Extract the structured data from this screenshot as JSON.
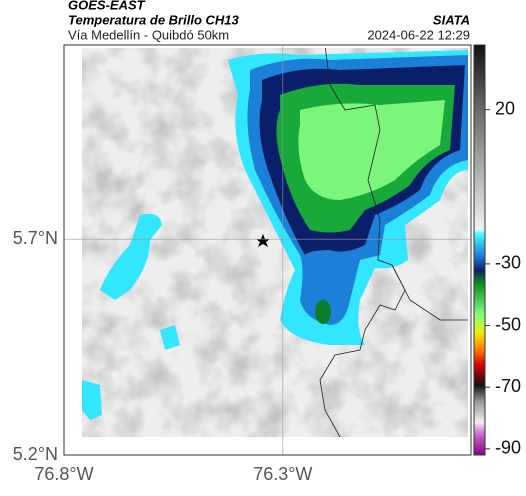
{
  "header": {
    "satellite": "GOES-EAST",
    "product": "Temperatura de Brillo CH13",
    "region": "Vía Medellín - Quibdó 50km",
    "agency": "SIATA",
    "datetime": "2024-06-22 12:29"
  },
  "map": {
    "xlim": [
      -76.8,
      -75.87
    ],
    "ylim": [
      5.2,
      6.15
    ],
    "xticks": [
      {
        "value": -76.8,
        "label": "76.8°W"
      },
      {
        "value": -76.3,
        "label": "76.3°W"
      }
    ],
    "yticks": [
      {
        "value": 5.2,
        "label": "5.2°N"
      },
      {
        "value": 5.7,
        "label": "5.7°N"
      }
    ],
    "grid": true
  },
  "colorbar": {
    "lim": [
      -92,
      41
    ],
    "ticks": [
      20,
      -30,
      -50,
      -70,
      -90
    ]
  }
}
